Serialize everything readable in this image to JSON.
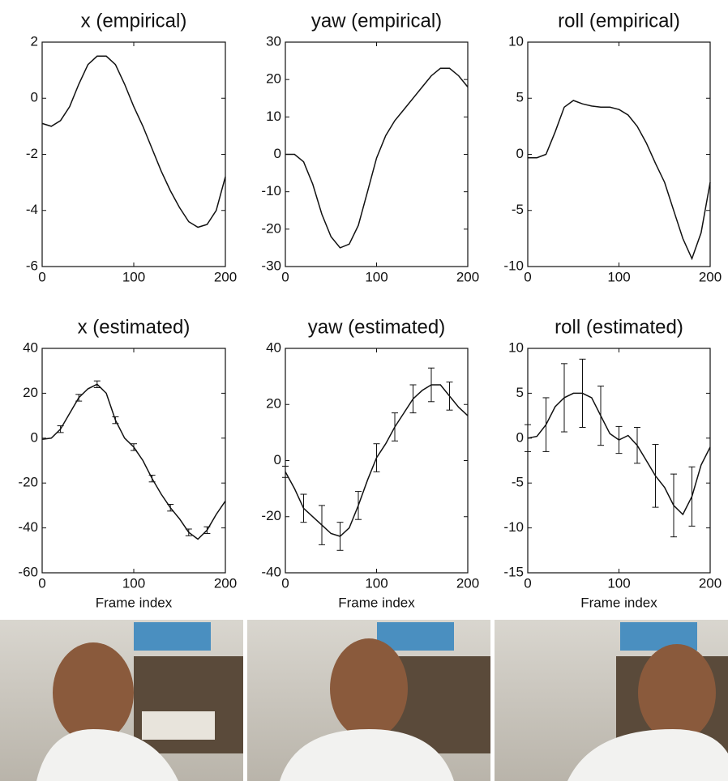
{
  "chart_data": [
    {
      "type": "line",
      "title": "x (empirical)",
      "color": "#111111",
      "x": [
        0,
        10,
        20,
        30,
        40,
        50,
        60,
        70,
        80,
        90,
        100,
        110,
        120,
        130,
        140,
        150,
        160,
        170,
        180,
        190,
        200
      ],
      "values": [
        -0.9,
        -1.0,
        -0.8,
        -0.3,
        0.5,
        1.2,
        1.5,
        1.5,
        1.2,
        0.5,
        -0.3,
        -1.0,
        -1.8,
        -2.6,
        -3.3,
        -3.9,
        -4.4,
        -4.6,
        -4.5,
        -4.0,
        -2.8
      ],
      "xlim": [
        0,
        200
      ],
      "xticks": [
        0,
        100,
        200
      ],
      "ylim": [
        -6,
        2
      ],
      "yticks": [
        -6,
        -4,
        -2,
        0,
        2
      ]
    },
    {
      "type": "line",
      "title": "yaw (empirical)",
      "color": "#111111",
      "x": [
        0,
        10,
        20,
        30,
        40,
        50,
        60,
        70,
        80,
        90,
        100,
        110,
        120,
        130,
        140,
        150,
        160,
        170,
        180,
        190,
        200
      ],
      "values": [
        0,
        0,
        -2,
        -8,
        -16,
        -22,
        -25,
        -24,
        -19,
        -10,
        -1,
        5,
        9,
        12,
        15,
        18,
        21,
        23,
        23,
        21,
        18
      ],
      "xlim": [
        0,
        200
      ],
      "xticks": [
        0,
        100,
        200
      ],
      "ylim": [
        -30,
        30
      ],
      "yticks": [
        -30,
        -20,
        -10,
        0,
        10,
        20,
        30
      ]
    },
    {
      "type": "line",
      "title": "roll (empirical)",
      "color": "#111111",
      "x": [
        0,
        10,
        20,
        30,
        40,
        50,
        60,
        70,
        80,
        90,
        100,
        110,
        120,
        130,
        140,
        150,
        160,
        170,
        180,
        190,
        200
      ],
      "values": [
        -0.3,
        -0.3,
        0,
        2,
        4.2,
        4.8,
        4.5,
        4.3,
        4.2,
        4.2,
        4,
        3.5,
        2.5,
        1,
        -0.8,
        -2.5,
        -5,
        -7.5,
        -9.3,
        -7,
        -2.5
      ],
      "xlim": [
        0,
        200
      ],
      "xticks": [
        0,
        100,
        200
      ],
      "ylim": [
        -10,
        10
      ],
      "yticks": [
        -10,
        -5,
        0,
        5,
        10
      ]
    },
    {
      "type": "line",
      "title": "x (estimated)",
      "xlabel": "Frame index",
      "color": "#111111",
      "x": [
        0,
        10,
        20,
        30,
        40,
        50,
        60,
        70,
        80,
        90,
        100,
        110,
        120,
        130,
        140,
        150,
        160,
        170,
        180,
        190,
        200
      ],
      "values": [
        -0.5,
        0,
        4,
        11,
        18,
        22,
        24,
        20,
        8,
        0,
        -4,
        -10,
        -18,
        -25,
        -31,
        -36,
        -42,
        -45,
        -41,
        -34,
        -28
      ],
      "errors": [
        null,
        null,
        1.5,
        null,
        1.5,
        null,
        1.5,
        null,
        1.5,
        null,
        1.5,
        null,
        1.5,
        null,
        1.5,
        null,
        1.5,
        null,
        1.5,
        null,
        null
      ],
      "xlim": [
        0,
        200
      ],
      "xticks": [
        0,
        100,
        200
      ],
      "ylim": [
        -60,
        40
      ],
      "yticks": [
        -60,
        -40,
        -20,
        0,
        20,
        40
      ]
    },
    {
      "type": "line",
      "title": "yaw (estimated)",
      "xlabel": "Frame index",
      "color": "#111111",
      "x": [
        0,
        10,
        20,
        30,
        40,
        50,
        60,
        70,
        80,
        90,
        100,
        110,
        120,
        130,
        140,
        150,
        160,
        170,
        180,
        190,
        200
      ],
      "values": [
        -4,
        -10,
        -17,
        -20,
        -23,
        -26,
        -27,
        -24,
        -16,
        -7,
        1,
        6,
        12,
        17,
        22,
        25,
        27,
        27,
        23,
        19,
        16
      ],
      "errors": [
        2,
        null,
        5,
        null,
        7,
        null,
        5,
        null,
        5,
        null,
        5,
        null,
        5,
        null,
        5,
        null,
        6,
        null,
        5,
        null,
        null
      ],
      "xlim": [
        0,
        200
      ],
      "xticks": [
        0,
        100,
        200
      ],
      "ylim": [
        -40,
        40
      ],
      "yticks": [
        -40,
        -20,
        0,
        20,
        40
      ]
    },
    {
      "type": "line",
      "title": "roll (estimated)",
      "xlabel": "Frame index",
      "color": "#111111",
      "x": [
        0,
        10,
        20,
        30,
        40,
        50,
        60,
        70,
        80,
        90,
        100,
        110,
        120,
        130,
        140,
        150,
        160,
        170,
        180,
        190,
        200
      ],
      "values": [
        0,
        0.2,
        1.5,
        3.5,
        4.5,
        5,
        5,
        4.5,
        2.5,
        0.5,
        -0.2,
        0.3,
        -0.8,
        -2.5,
        -4.2,
        -5.5,
        -7.5,
        -8.5,
        -6.5,
        -3,
        -1
      ],
      "errors": [
        1.5,
        null,
        3,
        null,
        3.8,
        null,
        3.8,
        null,
        3.3,
        null,
        1.5,
        null,
        2,
        null,
        3.5,
        null,
        3.5,
        null,
        3.3,
        null,
        null
      ],
      "xlim": [
        0,
        200
      ],
      "xticks": [
        0,
        100,
        200
      ],
      "ylim": [
        -15,
        10
      ],
      "yticks": [
        -15,
        -10,
        -5,
        0,
        5,
        10
      ]
    }
  ]
}
